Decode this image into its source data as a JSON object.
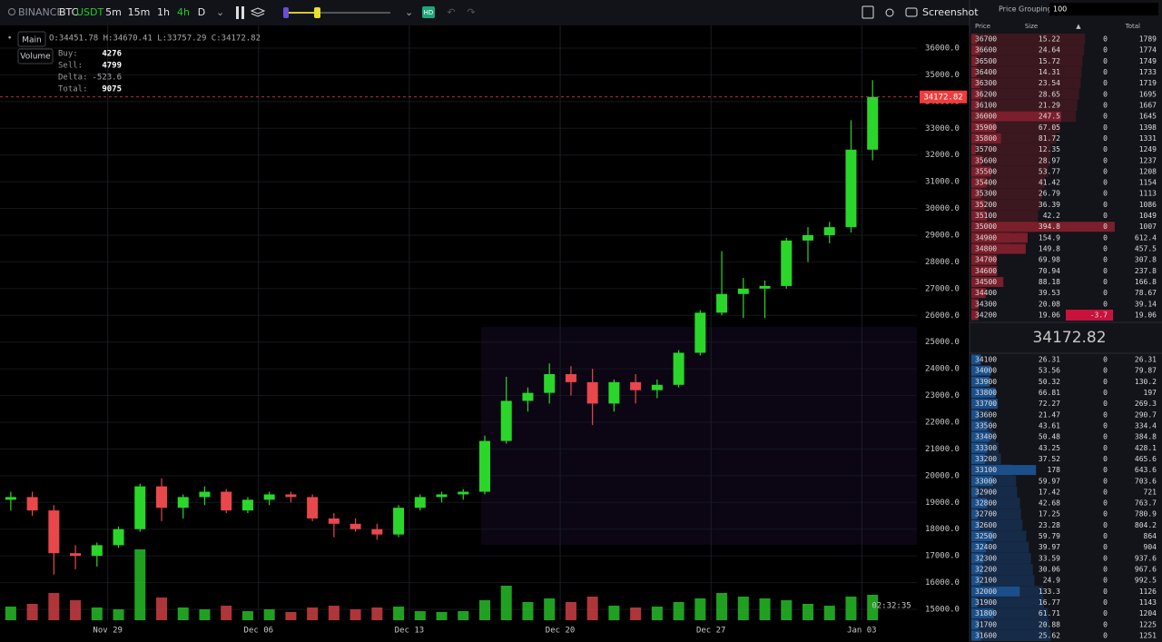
{
  "toolbar": {
    "exchange": "BINANCE",
    "base": "BTC",
    "quote": "USDT",
    "intervals": [
      "5m",
      "15m",
      "1h",
      "4h",
      "D"
    ],
    "active_interval": 3,
    "hd": "HD",
    "screenshot": "Screenshot"
  },
  "legend": {
    "main": "Main",
    "volume": "Volume",
    "ohlc": "O:34451.78 H:34670.41 L:33757.29 C:34172.82",
    "stats": [
      {
        "label": "Buy:",
        "value": 4276
      },
      {
        "label": "Sell:",
        "value": 4799
      },
      {
        "label": "Delta:",
        "value": -523.6
      },
      {
        "label": "Total:",
        "value": 9075
      }
    ]
  },
  "chart_data": {
    "type": "candlestick",
    "x": [
      0.5,
      1.5,
      2.5,
      3.5,
      4.5,
      5.5,
      6.5,
      7.5,
      8.5,
      9.5,
      10.5,
      11.5,
      12.5,
      13.5,
      14.5,
      15.5,
      16.5,
      17.5,
      18.5,
      19.5,
      20.5,
      21.5,
      22.5,
      23.5,
      24.5,
      25.5,
      26.5,
      27.5,
      28.5,
      29.5,
      30.5,
      31.5,
      32.5,
      33.5,
      34.5,
      35.5,
      36.5,
      37.5,
      38.5,
      39.5,
      40.5
    ],
    "open": [
      19100,
      19200,
      18700,
      17100,
      17000,
      17400,
      18000,
      19600,
      18800,
      19200,
      19400,
      18700,
      19100,
      19300,
      19200,
      18400,
      18200,
      18000,
      17800,
      18800,
      19200,
      19300,
      19400,
      21300,
      22800,
      23100,
      23800,
      23500,
      22700,
      23500,
      23200,
      23400,
      24600,
      26100,
      26800,
      27000,
      27100,
      28800,
      29000,
      29300,
      32200
    ],
    "high": [
      19400,
      19400,
      18900,
      17400,
      17500,
      18100,
      19700,
      19900,
      19300,
      19600,
      19500,
      19200,
      19400,
      19400,
      19300,
      18600,
      18400,
      18200,
      18900,
      19300,
      19400,
      19500,
      21500,
      23700,
      23300,
      24200,
      24100,
      24000,
      23600,
      23800,
      23600,
      24700,
      26200,
      28400,
      27400,
      27300,
      28900,
      29300,
      29500,
      33300,
      34800
    ],
    "low": [
      18700,
      18500,
      16300,
      16500,
      16600,
      17300,
      17900,
      18300,
      18400,
      18900,
      18600,
      18600,
      18900,
      19000,
      18300,
      17700,
      17900,
      17600,
      17700,
      18700,
      19000,
      19100,
      19300,
      21200,
      22400,
      22700,
      23000,
      21900,
      22400,
      22700,
      22900,
      23300,
      24500,
      26000,
      25900,
      25900,
      27000,
      28000,
      28700,
      29100,
      31800
    ],
    "close": [
      19200,
      18700,
      17100,
      17000,
      17400,
      18000,
      19600,
      18800,
      19200,
      19400,
      18700,
      19100,
      19300,
      19200,
      18400,
      18200,
      18000,
      17800,
      18800,
      19200,
      19300,
      19400,
      21300,
      22800,
      23100,
      23800,
      23500,
      22700,
      23500,
      23200,
      23400,
      24600,
      26100,
      26800,
      27000,
      27100,
      28800,
      29000,
      29300,
      32200,
      34172.82
    ],
    "volume": [
      15,
      18,
      30,
      22,
      14,
      12,
      78,
      25,
      14,
      12,
      16,
      10,
      12,
      9,
      14,
      16,
      12,
      14,
      15,
      10,
      9,
      10,
      22,
      38,
      20,
      24,
      20,
      26,
      16,
      14,
      15,
      20,
      24,
      30,
      26,
      24,
      22,
      18,
      16,
      26,
      28
    ],
    "volume_lim": [
      0,
      100
    ],
    "up_color": "#2bd62b",
    "down_color": "#e8474c",
    "xlim": [
      0,
      45
    ],
    "xticks": [
      {
        "value": 5,
        "label": "Nov 29"
      },
      {
        "value": 12,
        "label": "Dec 06"
      },
      {
        "value": 19,
        "label": "Dec 13"
      },
      {
        "value": 26,
        "label": "Dec 20"
      },
      {
        "value": 33,
        "label": "Dec 27"
      },
      {
        "value": 40,
        "label": "Jan 03"
      }
    ],
    "ylim": [
      14592,
      36849
    ],
    "yticks": [
      {
        "value": 15000,
        "label": "15000.0"
      },
      {
        "value": 16000,
        "label": "16000.0"
      },
      {
        "value": 17000,
        "label": "17000.0"
      },
      {
        "value": 18000,
        "label": "18000.0"
      },
      {
        "value": 19000,
        "label": "19000.0"
      },
      {
        "value": 20000,
        "label": "20000.0"
      },
      {
        "value": 21000,
        "label": "21000.0"
      },
      {
        "value": 22000,
        "label": "22000.0"
      },
      {
        "value": 23000,
        "label": "23000.0"
      },
      {
        "value": 24000,
        "label": "24000.0"
      },
      {
        "value": 25000,
        "label": "25000.0"
      },
      {
        "value": 26000,
        "label": "26000.0"
      },
      {
        "value": 27000,
        "label": "27000.0"
      },
      {
        "value": 28000,
        "label": "28000.0"
      },
      {
        "value": 29000,
        "label": "29000.0"
      },
      {
        "value": 30000,
        "label": "30000.0"
      },
      {
        "value": 31000,
        "label": "31000.0"
      },
      {
        "value": 32000,
        "label": "32000.0"
      },
      {
        "value": 33000,
        "label": "33000.0"
      },
      {
        "value": 34000,
        "label": "34000.0"
      },
      {
        "value": 35000,
        "label": "35000.0"
      },
      {
        "value": 36000,
        "label": "36000.0"
      }
    ],
    "grid": true,
    "timer": "02:32:35"
  },
  "order_book": {
    "grouping_label": "Price Grouping",
    "grouping": 100,
    "columns": [
      "Price",
      "Size",
      "Total"
    ],
    "mid_price": 34172.82,
    "asks": [
      [
        36700,
        15.22,
        0,
        1789
      ],
      [
        36600,
        24.64,
        0,
        1774
      ],
      [
        36500,
        15.72,
        0,
        1749
      ],
      [
        36400,
        14.31,
        0,
        1733
      ],
      [
        36300,
        23.54,
        0,
        1719
      ],
      [
        36200,
        28.65,
        0,
        1695
      ],
      [
        36100,
        21.29,
        0,
        1667
      ],
      [
        36000,
        247.5,
        0,
        1645
      ],
      [
        35900,
        67.05,
        0,
        1398
      ],
      [
        35800,
        81.72,
        0,
        1331
      ],
      [
        35700,
        12.35,
        0,
        1249
      ],
      [
        35600,
        28.97,
        0,
        1237
      ],
      [
        35500,
        53.77,
        0,
        1208
      ],
      [
        35400,
        41.42,
        0,
        1154
      ],
      [
        35300,
        26.79,
        0,
        1113
      ],
      [
        35200,
        36.39,
        0,
        1086
      ],
      [
        35100,
        42.2,
        0,
        1049
      ],
      [
        35000,
        394.8,
        0,
        1007
      ],
      [
        34900,
        154.9,
        0,
        612.4
      ],
      [
        34800,
        149.8,
        0,
        457.5
      ],
      [
        34700,
        69.98,
        0,
        307.8
      ],
      [
        34600,
        70.94,
        0,
        237.8
      ],
      [
        34500,
        88.18,
        0,
        166.8
      ],
      [
        34400,
        39.53,
        0,
        78.67
      ],
      [
        34300,
        20.08,
        0,
        39.14
      ],
      [
        34200,
        19.06,
        -3.7,
        19.06
      ]
    ],
    "bids": [
      [
        34100,
        26.31,
        0,
        26.31
      ],
      [
        34000,
        53.56,
        0,
        79.87
      ],
      [
        33900,
        50.32,
        0,
        130.2
      ],
      [
        33800,
        66.81,
        0,
        197
      ],
      [
        33700,
        72.27,
        0,
        269.3
      ],
      [
        33600,
        21.47,
        0,
        290.7
      ],
      [
        33500,
        43.61,
        0,
        334.4
      ],
      [
        33400,
        50.48,
        0,
        384.8
      ],
      [
        33300,
        43.25,
        0,
        428.1
      ],
      [
        33200,
        37.52,
        0,
        465.6
      ],
      [
        33100,
        178,
        0,
        643.6
      ],
      [
        33000,
        59.97,
        0,
        703.6
      ],
      [
        32900,
        17.42,
        0,
        721
      ],
      [
        32800,
        42.68,
        0,
        763.7
      ],
      [
        32700,
        17.25,
        0,
        780.9
      ],
      [
        32600,
        23.28,
        0,
        804.2
      ],
      [
        32500,
        59.79,
        0,
        864
      ],
      [
        32400,
        39.97,
        0,
        904
      ],
      [
        32300,
        33.59,
        0,
        937.6
      ],
      [
        32200,
        30.06,
        0,
        967.6
      ],
      [
        32100,
        24.9,
        0,
        992.5
      ],
      [
        32000,
        133.3,
        0,
        1126
      ],
      [
        31900,
        16.77,
        0,
        1143
      ],
      [
        31800,
        61.71,
        0,
        1204
      ],
      [
        31700,
        20.88,
        0,
        1225
      ],
      [
        31600,
        25.62,
        0,
        1251
      ]
    ]
  }
}
